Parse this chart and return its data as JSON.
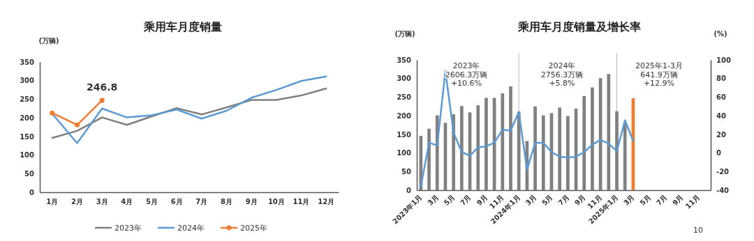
{
  "chart_data": [
    {
      "type": "line",
      "title": "乘用车月度销量",
      "ylabel": "(万辆)",
      "categories": [
        "1月",
        "2月",
        "3月",
        "4月",
        "5月",
        "6月",
        "7月",
        "8月",
        "9月",
        "10月",
        "11月",
        "12月"
      ],
      "series": [
        {
          "name": "2023年",
          "color": "#7f7f7f",
          "values": [
            146,
            165,
            201,
            181,
            204,
            226,
            209,
            228,
            248,
            248,
            260,
            279
          ]
        },
        {
          "name": "2024年",
          "color": "#5b9bd5",
          "values": [
            211,
            132,
            225,
            201,
            207,
            222,
            198,
            219,
            254,
            275,
            299,
            311
          ]
        },
        {
          "name": "2025年",
          "color": "#ed7d31",
          "marker": "circle",
          "values": [
            213,
            181,
            246.8,
            null,
            null,
            null,
            null,
            null,
            null,
            null,
            null,
            null
          ]
        }
      ],
      "ylim": [
        0,
        350
      ],
      "yticks": [
        0,
        50,
        100,
        150,
        200,
        250,
        300,
        350
      ],
      "legend": "bottom",
      "annotations": [
        {
          "text": "246.8",
          "x": "3月",
          "y": 246.8
        }
      ]
    },
    {
      "type": "bar",
      "title": "乘用车月度销量及增长率",
      "ylabel": "(万辆)",
      "y2label": "(%)",
      "categories": [
        "2023年1月",
        null,
        "3月",
        null,
        "5月",
        null,
        "7月",
        null,
        "9月",
        null,
        "11月",
        null,
        "2024年1月",
        null,
        "3月",
        null,
        "5月",
        null,
        "7月",
        null,
        "9月",
        null,
        "11月",
        null,
        "2025年1月",
        null,
        "3月",
        null,
        "5月",
        null,
        "7月",
        null,
        "9月",
        null,
        "11月",
        null
      ],
      "series": [
        {
          "colors": [
            "#808080",
            "#808080",
            "#808080",
            "#808080",
            "#808080",
            "#808080",
            "#808080",
            "#808080",
            "#808080",
            "#808080",
            "#808080",
            "#808080",
            "#808080",
            "#808080",
            "#808080",
            "#808080",
            "#808080",
            "#808080",
            "#808080",
            "#808080",
            "#808080",
            "#808080",
            "#808080",
            "#808080",
            "#808080",
            "#808080",
            "#ed7d31",
            null,
            null,
            null,
            null,
            null,
            null,
            null,
            null,
            null
          ],
          "values": [
            146,
            165,
            201,
            181,
            204,
            226,
            209,
            228,
            248,
            248,
            260,
            279,
            211,
            132,
            225,
            201,
            207,
            222,
            199,
            219,
            253,
            276,
            301,
            312,
            212,
            181,
            247,
            null,
            null,
            null,
            null,
            null,
            null,
            null,
            null,
            null
          ]
        },
        {
          "type": "line",
          "axis": "y2",
          "color": "#5b9bd5",
          "values": [
            -36,
            11,
            8,
            88,
            22,
            1,
            -3,
            6,
            7,
            11,
            25,
            24,
            44,
            -18,
            11,
            11,
            1,
            -4,
            -5,
            -4,
            1,
            9,
            14,
            10,
            2,
            35,
            13,
            null,
            null,
            null,
            null,
            null,
            null,
            null,
            null,
            null
          ]
        }
      ],
      "ylim": [
        0,
        350
      ],
      "yticks": [
        0,
        50,
        100,
        150,
        200,
        250,
        300,
        350
      ],
      "y2lim": [
        -40,
        100
      ],
      "y2ticks": [
        -40,
        -20,
        0,
        20,
        40,
        60,
        80,
        100
      ],
      "ref_lines": [
        {
          "axis": "x",
          "value": "2024年1月"
        },
        {
          "axis": "x",
          "value": "2025年1月"
        }
      ],
      "annotations": [
        "2023年\n2606.3万辆\n+10.6%",
        "2024年\n2756.3万辆\n+5.8%",
        "2025年1-3月\n641.9万辆\n+12.9%",
        "10"
      ]
    }
  ]
}
